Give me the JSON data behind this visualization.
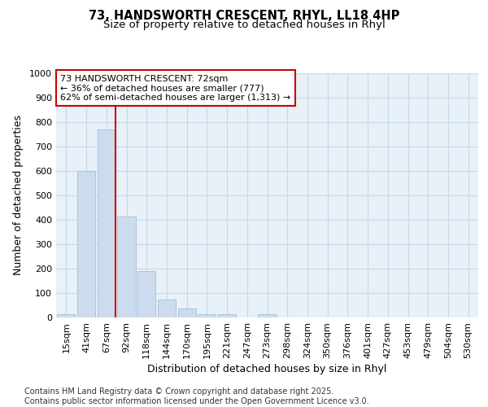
{
  "title_line1": "73, HANDSWORTH CRESCENT, RHYL, LL18 4HP",
  "title_line2": "Size of property relative to detached houses in Rhyl",
  "xlabel": "Distribution of detached houses by size in Rhyl",
  "ylabel": "Number of detached properties",
  "categories": [
    "15sqm",
    "41sqm",
    "67sqm",
    "92sqm",
    "118sqm",
    "144sqm",
    "170sqm",
    "195sqm",
    "221sqm",
    "247sqm",
    "273sqm",
    "298sqm",
    "324sqm",
    "350sqm",
    "376sqm",
    "401sqm",
    "427sqm",
    "453sqm",
    "479sqm",
    "504sqm",
    "530sqm"
  ],
  "values": [
    13,
    600,
    770,
    415,
    190,
    75,
    38,
    15,
    13,
    0,
    13,
    0,
    0,
    0,
    0,
    0,
    0,
    0,
    0,
    0,
    0
  ],
  "bar_color": "#ccdcee",
  "bar_edge_color": "#aac4de",
  "grid_color": "#c8d8e8",
  "background_color": "#e8f0f8",
  "vline_color": "#cc0000",
  "annotation_text": "73 HANDSWORTH CRESCENT: 72sqm\n← 36% of detached houses are smaller (777)\n62% of semi-detached houses are larger (1,313) →",
  "annotation_box_color": "#ffffff",
  "annotation_box_edge": "#cc0000",
  "ylim": [
    0,
    1000
  ],
  "yticks": [
    0,
    100,
    200,
    300,
    400,
    500,
    600,
    700,
    800,
    900,
    1000
  ],
  "footer_line1": "Contains HM Land Registry data © Crown copyright and database right 2025.",
  "footer_line2": "Contains public sector information licensed under the Open Government Licence v3.0.",
  "title_fontsize": 10.5,
  "subtitle_fontsize": 9.5,
  "axis_label_fontsize": 9,
  "tick_fontsize": 8,
  "annotation_fontsize": 8,
  "footer_fontsize": 7
}
